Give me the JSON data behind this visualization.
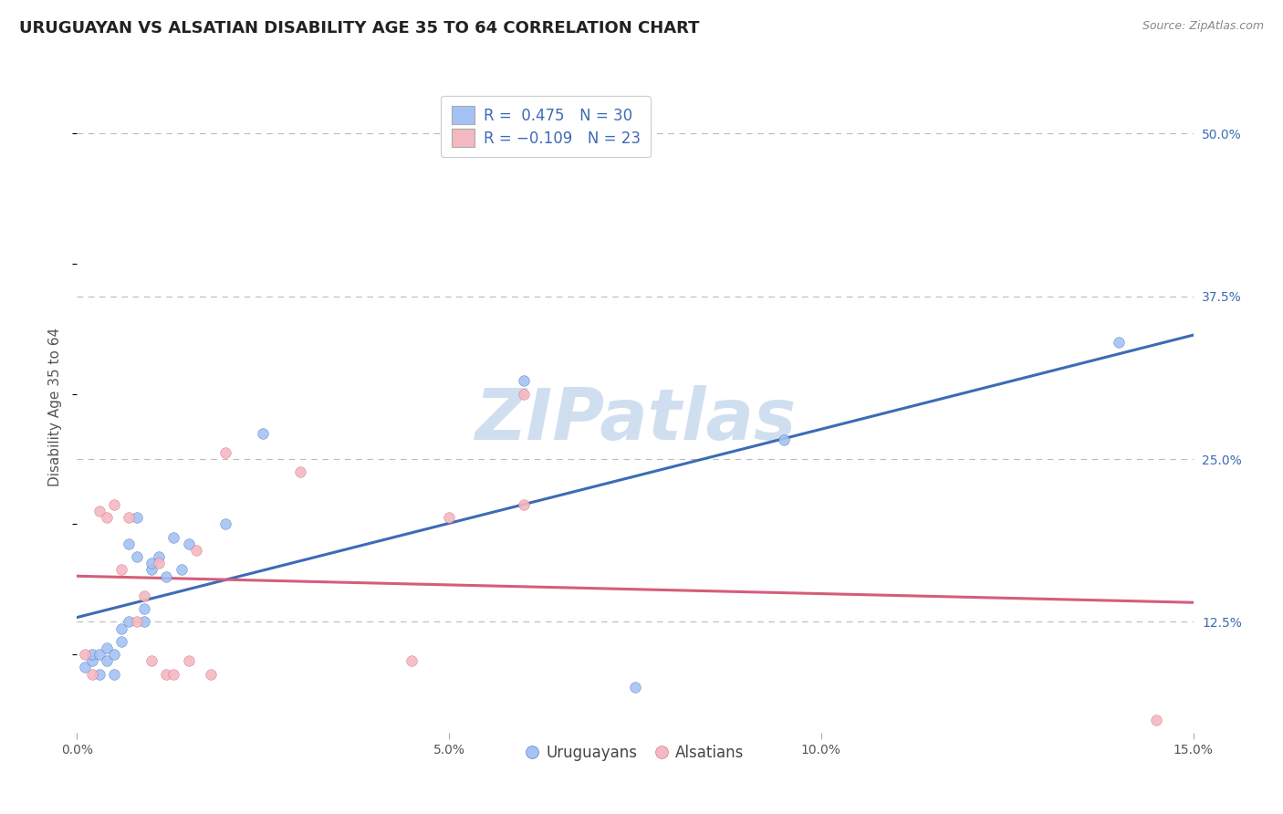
{
  "title": "URUGUAYAN VS ALSATIAN DISABILITY AGE 35 TO 64 CORRELATION CHART",
  "source_text": "Source: ZipAtlas.com",
  "ylabel": "Disability Age 35 to 64",
  "xlim": [
    0.0,
    0.15
  ],
  "ylim": [
    0.04,
    0.54
  ],
  "x_ticks": [
    0.0,
    0.05,
    0.1,
    0.15
  ],
  "x_tick_labels": [
    "0.0%",
    "5.0%",
    "10.0%",
    "15.0%"
  ],
  "y_ticks_right": [
    0.125,
    0.25,
    0.375,
    0.5
  ],
  "y_tick_labels_right": [
    "12.5%",
    "25.0%",
    "37.5%",
    "50.0%"
  ],
  "blue_color": "#a4c2f4",
  "pink_color": "#f4b8c1",
  "blue_line_color": "#3d6bb5",
  "pink_line_color": "#d45e7a",
  "watermark_text": "ZIPatlas",
  "watermark_color": "#d0dff0",
  "legend_label1": "Uruguayans",
  "legend_label2": "Alsatians",
  "blue_x": [
    0.001,
    0.002,
    0.002,
    0.003,
    0.003,
    0.004,
    0.004,
    0.005,
    0.005,
    0.006,
    0.006,
    0.007,
    0.007,
    0.008,
    0.008,
    0.009,
    0.009,
    0.01,
    0.01,
    0.011,
    0.012,
    0.013,
    0.014,
    0.015,
    0.02,
    0.025,
    0.06,
    0.075,
    0.095,
    0.14
  ],
  "blue_y": [
    0.09,
    0.095,
    0.1,
    0.085,
    0.1,
    0.095,
    0.105,
    0.085,
    0.1,
    0.11,
    0.12,
    0.125,
    0.185,
    0.175,
    0.205,
    0.125,
    0.135,
    0.165,
    0.17,
    0.175,
    0.16,
    0.19,
    0.165,
    0.185,
    0.2,
    0.27,
    0.31,
    0.075,
    0.265,
    0.34
  ],
  "pink_x": [
    0.001,
    0.002,
    0.003,
    0.004,
    0.005,
    0.006,
    0.007,
    0.008,
    0.009,
    0.01,
    0.011,
    0.012,
    0.013,
    0.015,
    0.016,
    0.018,
    0.02,
    0.03,
    0.045,
    0.05,
    0.06,
    0.06,
    0.145
  ],
  "pink_y": [
    0.1,
    0.085,
    0.21,
    0.205,
    0.215,
    0.165,
    0.205,
    0.125,
    0.145,
    0.095,
    0.17,
    0.085,
    0.085,
    0.095,
    0.18,
    0.085,
    0.255,
    0.24,
    0.095,
    0.205,
    0.215,
    0.3,
    0.05
  ],
  "title_fontsize": 13,
  "axis_label_fontsize": 11,
  "tick_fontsize": 10,
  "legend_fontsize": 12,
  "source_fontsize": 9
}
